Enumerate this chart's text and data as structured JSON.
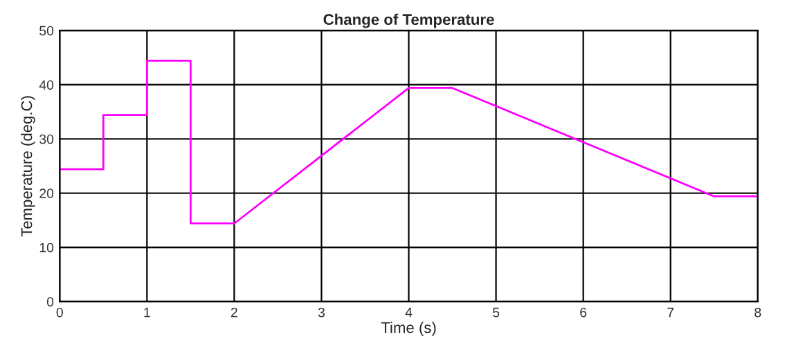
{
  "chart_data": {
    "type": "line",
    "title": "Change of Temperature",
    "xlabel": "Time (s)",
    "ylabel": "Temperature (deg.C)",
    "x": [
      0,
      0.5,
      0.5,
      1,
      1,
      1.5,
      1.5,
      2,
      4,
      4.5,
      7.5,
      8
    ],
    "series": [
      {
        "color": "#ff00ff",
        "values": [
          24.4,
          24.4,
          34.4,
          34.4,
          44.4,
          44.4,
          14.4,
          14.4,
          39.4,
          39.4,
          19.4,
          19.4
        ]
      }
    ],
    "xlim": [
      0,
      8
    ],
    "ylim": [
      0,
      50
    ],
    "xticks": [
      0,
      1,
      2,
      3,
      4,
      5,
      6,
      7,
      8
    ],
    "yticks": [
      0,
      10,
      20,
      30,
      40,
      50
    ],
    "grid": true,
    "legend": false
  }
}
